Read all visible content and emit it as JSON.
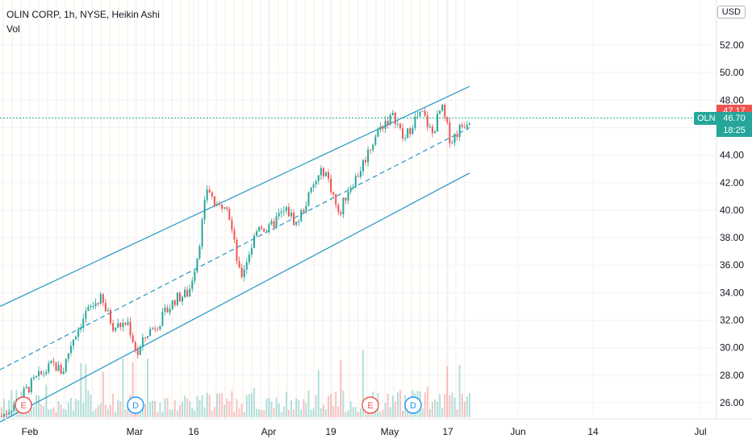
{
  "legend": {
    "title": "OLIN CORP, 1h, NYSE, Heikin Ashi",
    "indicator": "Vol"
  },
  "currency_button": "USD",
  "symbol_tag": "OLN",
  "price_labels": {
    "high": "47.17",
    "last": "46.70",
    "countdown": "18:25"
  },
  "events": [
    {
      "letter": "E",
      "kind": "earnings",
      "x_index": 0
    },
    {
      "letter": "D",
      "kind": "dividend",
      "x_index": 1
    },
    {
      "letter": "E",
      "kind": "earnings",
      "x_index": 2
    },
    {
      "letter": "D",
      "kind": "dividend",
      "x_index": 3
    }
  ],
  "colors": {
    "up": "#26a69a",
    "down": "#ef5350",
    "channel": "#2196c9",
    "last_price_line": "#26a69a",
    "high_tag": "#ef5350",
    "last_tag": "#26a69a",
    "grid": "#f0f3fa",
    "vline": "#f5d0a9"
  },
  "chart_data": {
    "type": "candlestick",
    "style": "Heikin Ashi",
    "symbol": "OLIN CORP",
    "interval": "1h",
    "exchange": "NYSE",
    "x_ticks": [
      "Feb",
      "Mar",
      "16",
      "Apr",
      "19",
      "May",
      "17",
      "Jun",
      "14",
      "Jul"
    ],
    "y_ticks": [
      "26.00",
      "28.00",
      "30.00",
      "32.00",
      "34.00",
      "36.00",
      "38.00",
      "40.00",
      "42.00",
      "44.00",
      "46.00",
      "48.00",
      "50.00",
      "52.00"
    ],
    "ylim": [
      25.0,
      54.0
    ],
    "price_path": [
      [
        0,
        25.0
      ],
      [
        0.03,
        26.0
      ],
      [
        0.07,
        27.6
      ],
      [
        0.11,
        28.8
      ],
      [
        0.13,
        28.2
      ],
      [
        0.15,
        30.5
      ],
      [
        0.18,
        32.5
      ],
      [
        0.21,
        33.6
      ],
      [
        0.24,
        31.5
      ],
      [
        0.27,
        31.8
      ],
      [
        0.29,
        29.5
      ],
      [
        0.31,
        31.0
      ],
      [
        0.34,
        32.0
      ],
      [
        0.37,
        33.5
      ],
      [
        0.4,
        34.0
      ],
      [
        0.42,
        37.0
      ],
      [
        0.44,
        41.8
      ],
      [
        0.46,
        40.0
      ],
      [
        0.48,
        40.8
      ],
      [
        0.5,
        37.0
      ],
      [
        0.51,
        35.0
      ],
      [
        0.53,
        37.0
      ],
      [
        0.55,
        39.0
      ],
      [
        0.57,
        38.5
      ],
      [
        0.59,
        39.5
      ],
      [
        0.61,
        40.0
      ],
      [
        0.63,
        39.0
      ],
      [
        0.65,
        40.5
      ],
      [
        0.67,
        42.0
      ],
      [
        0.69,
        43.0
      ],
      [
        0.71,
        41.0
      ],
      [
        0.72,
        39.5
      ],
      [
        0.74,
        41.5
      ],
      [
        0.76,
        42.5
      ],
      [
        0.78,
        44.0
      ],
      [
        0.8,
        45.5
      ],
      [
        0.82,
        46.5
      ],
      [
        0.84,
        46.8
      ],
      [
        0.86,
        45.0
      ],
      [
        0.88,
        46.5
      ],
      [
        0.9,
        47.0
      ],
      [
        0.92,
        45.5
      ],
      [
        0.94,
        47.5
      ],
      [
        0.96,
        45.0
      ],
      [
        0.98,
        46.0
      ],
      [
        1.0,
        46.7
      ]
    ],
    "channel": {
      "upper_start": 33.0,
      "upper_end": 49.0,
      "middle_start": 28.4,
      "middle_end": 46.0,
      "lower_start": 24.6,
      "lower_end": 42.7
    },
    "last_price": 46.7,
    "high_marker": 47.17,
    "grid": true
  }
}
